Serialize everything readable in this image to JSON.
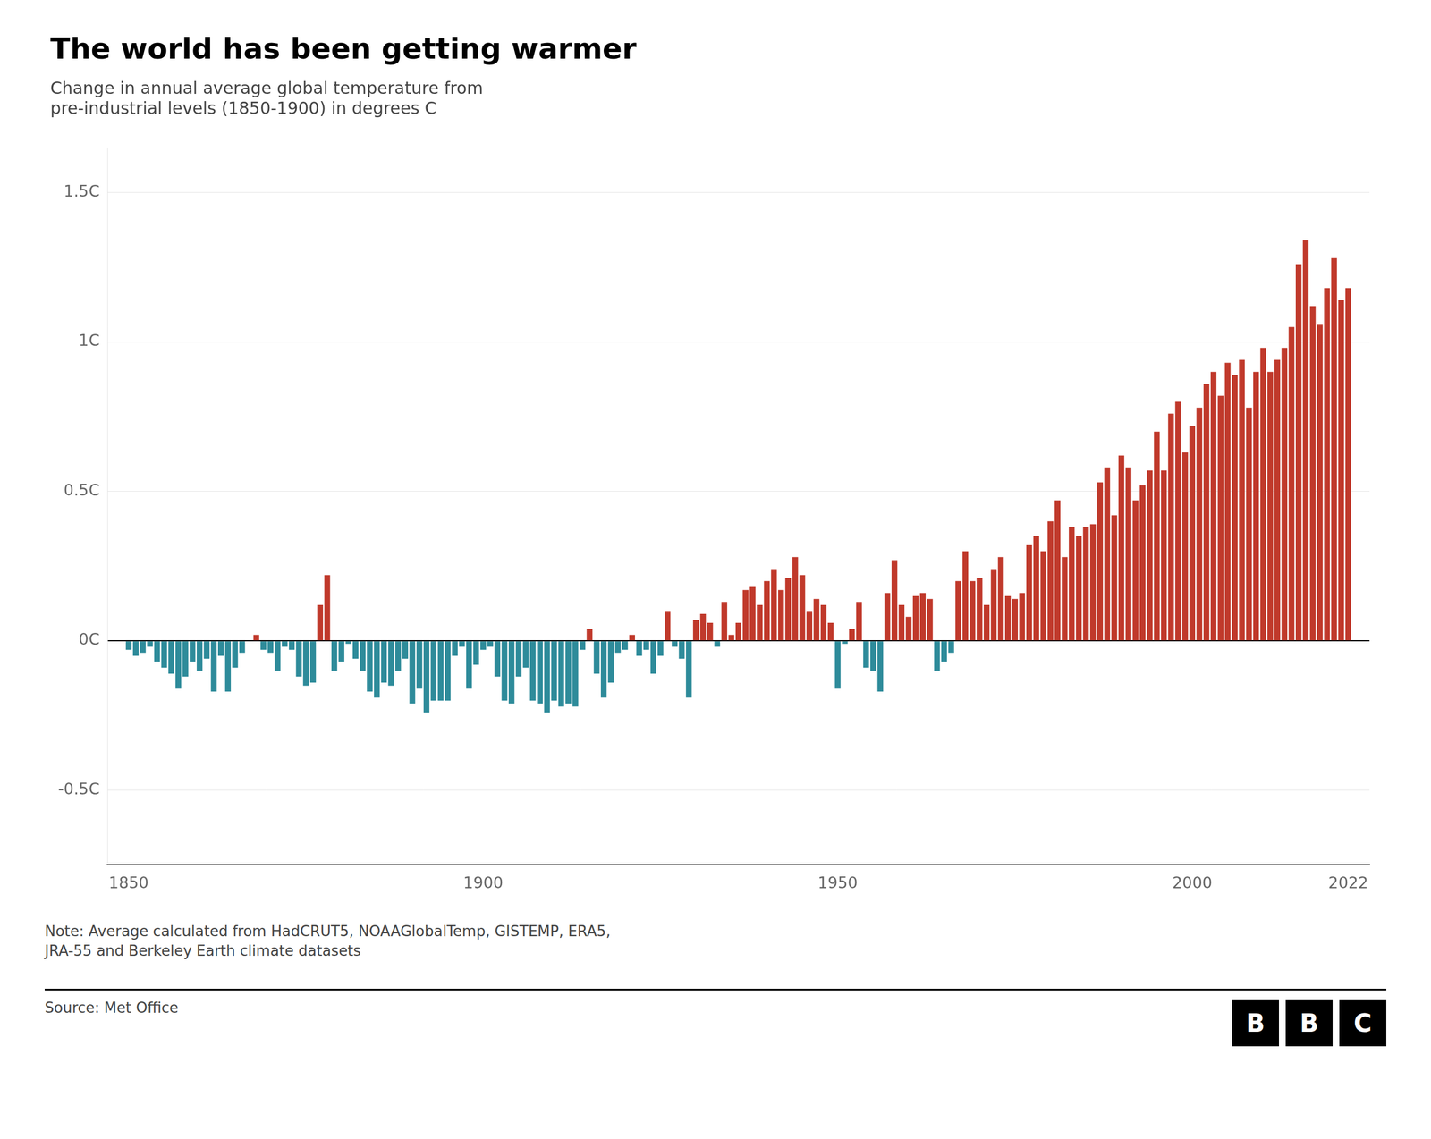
{
  "chart_data": {
    "type": "bar",
    "title": "The world has been getting warmer",
    "subtitle": "Change in annual average global temperature from\npre-industrial levels (1850-1900) in degrees C",
    "note": "Note: Average calculated from HadCRUT5, NOAAGlobalTemp, GISTEMP, ERA5,\nJRA-55 and Berkeley Earth climate datasets",
    "source": "Source: Met Office",
    "logo": [
      "B",
      "B",
      "C"
    ],
    "x": [
      1850,
      1851,
      1852,
      1853,
      1854,
      1855,
      1856,
      1857,
      1858,
      1859,
      1860,
      1861,
      1862,
      1863,
      1864,
      1865,
      1866,
      1867,
      1868,
      1869,
      1870,
      1871,
      1872,
      1873,
      1874,
      1875,
      1876,
      1877,
      1878,
      1879,
      1880,
      1881,
      1882,
      1883,
      1884,
      1885,
      1886,
      1887,
      1888,
      1889,
      1890,
      1891,
      1892,
      1893,
      1894,
      1895,
      1896,
      1897,
      1898,
      1899,
      1900,
      1901,
      1902,
      1903,
      1904,
      1905,
      1906,
      1907,
      1908,
      1909,
      1910,
      1911,
      1912,
      1913,
      1914,
      1915,
      1916,
      1917,
      1918,
      1919,
      1920,
      1921,
      1922,
      1923,
      1924,
      1925,
      1926,
      1927,
      1928,
      1929,
      1930,
      1931,
      1932,
      1933,
      1934,
      1935,
      1936,
      1937,
      1938,
      1939,
      1940,
      1941,
      1942,
      1943,
      1944,
      1945,
      1946,
      1947,
      1948,
      1949,
      1950,
      1951,
      1952,
      1953,
      1954,
      1955,
      1956,
      1957,
      1958,
      1959,
      1960,
      1961,
      1962,
      1963,
      1964,
      1965,
      1966,
      1967,
      1968,
      1969,
      1970,
      1971,
      1972,
      1973,
      1974,
      1975,
      1976,
      1977,
      1978,
      1979,
      1980,
      1981,
      1982,
      1983,
      1984,
      1985,
      1986,
      1987,
      1988,
      1989,
      1990,
      1991,
      1992,
      1993,
      1994,
      1995,
      1996,
      1997,
      1998,
      1999,
      2000,
      2001,
      2002,
      2003,
      2004,
      2005,
      2006,
      2007,
      2008,
      2009,
      2010,
      2011,
      2012,
      2013,
      2014,
      2015,
      2016,
      2017,
      2018,
      2019,
      2020,
      2021,
      2022
    ],
    "values": [
      -0.03,
      -0.05,
      -0.04,
      -0.02,
      -0.07,
      -0.09,
      -0.11,
      -0.16,
      -0.12,
      -0.07,
      -0.1,
      -0.06,
      -0.17,
      -0.05,
      -0.17,
      -0.09,
      -0.04,
      0.0,
      0.02,
      -0.03,
      -0.04,
      -0.1,
      -0.02,
      -0.03,
      -0.12,
      -0.15,
      -0.14,
      0.12,
      0.22,
      -0.1,
      -0.07,
      -0.01,
      -0.06,
      -0.1,
      -0.17,
      -0.19,
      -0.14,
      -0.15,
      -0.1,
      -0.06,
      -0.21,
      -0.16,
      -0.24,
      -0.2,
      -0.2,
      -0.2,
      -0.05,
      -0.02,
      -0.16,
      -0.08,
      -0.03,
      -0.02,
      -0.12,
      -0.2,
      -0.21,
      -0.12,
      -0.09,
      -0.2,
      -0.21,
      -0.24,
      -0.2,
      -0.22,
      -0.21,
      -0.22,
      -0.03,
      0.04,
      -0.11,
      -0.19,
      -0.14,
      -0.04,
      -0.03,
      0.02,
      -0.05,
      -0.03,
      -0.11,
      -0.05,
      0.1,
      -0.02,
      -0.06,
      -0.19,
      0.07,
      0.09,
      0.06,
      -0.02,
      0.13,
      0.02,
      0.06,
      0.17,
      0.18,
      0.12,
      0.2,
      0.24,
      0.17,
      0.21,
      0.28,
      0.22,
      0.1,
      0.14,
      0.12,
      0.06,
      -0.16,
      -0.01,
      0.04,
      0.13,
      -0.09,
      -0.1,
      -0.17,
      0.16,
      0.27,
      0.12,
      0.08,
      0.15,
      0.16,
      0.14,
      -0.1,
      -0.07,
      -0.04,
      0.2,
      0.3,
      0.2,
      0.21,
      0.12,
      0.24,
      0.28,
      0.15,
      0.14,
      0.16,
      0.32,
      0.35,
      0.3,
      0.4,
      0.47,
      0.28,
      0.38,
      0.35,
      0.38,
      0.39,
      0.53,
      0.58,
      0.42,
      0.62,
      0.58,
      0.47,
      0.52,
      0.57,
      0.7,
      0.57,
      0.76,
      0.8,
      0.63,
      0.72,
      0.78,
      0.86,
      0.9,
      0.82,
      0.93,
      0.89,
      0.94,
      0.78,
      0.9,
      0.98,
      0.9,
      0.94,
      0.98,
      1.05,
      1.26,
      1.34,
      1.12,
      1.06,
      1.18,
      1.28,
      1.14,
      1.18
    ],
    "colors": [
      "#2e8b9a",
      "#2e8b9a",
      "#2e8b9a",
      "#2e8b9a",
      "#2e8b9a",
      "#2e8b9a",
      "#2e8b9a",
      "#2e8b9a",
      "#2e8b9a",
      "#2e8b9a",
      "#2e8b9a",
      "#2e8b9a",
      "#2e8b9a",
      "#2e8b9a",
      "#2e8b9a",
      "#2e8b9a",
      "#2e8b9a",
      "#c0392b",
      "#c0392b",
      "#2e8b9a",
      "#2e8b9a",
      "#2e8b9a",
      "#2e8b9a",
      "#2e8b9a",
      "#2e8b9a",
      "#2e8b9a",
      "#2e8b9a",
      "#c0392b",
      "#c0392b",
      "#2e8b9a",
      "#2e8b9a",
      "#2e8b9a",
      "#2e8b9a",
      "#2e8b9a",
      "#2e8b9a",
      "#2e8b9a",
      "#2e8b9a",
      "#2e8b9a",
      "#2e8b9a",
      "#2e8b9a",
      "#2e8b9a",
      "#2e8b9a",
      "#2e8b9a",
      "#2e8b9a",
      "#2e8b9a",
      "#2e8b9a",
      "#2e8b9a",
      "#2e8b9a",
      "#2e8b9a",
      "#2e8b9a",
      "#2e8b9a",
      "#2e8b9a",
      "#2e8b9a",
      "#2e8b9a",
      "#2e8b9a",
      "#2e8b9a",
      "#2e8b9a",
      "#2e8b9a",
      "#2e8b9a",
      "#2e8b9a",
      "#2e8b9a",
      "#2e8b9a",
      "#2e8b9a",
      "#2e8b9a",
      "#2e8b9a",
      "#c0392b",
      "#2e8b9a",
      "#2e8b9a",
      "#2e8b9a",
      "#2e8b9a",
      "#2e8b9a",
      "#c0392b",
      "#2e8b9a",
      "#2e8b9a",
      "#2e8b9a",
      "#2e8b9a",
      "#c0392b",
      "#2e8b9a",
      "#2e8b9a",
      "#2e8b9a",
      "#c0392b",
      "#c0392b",
      "#c0392b",
      "#2e8b9a",
      "#c0392b",
      "#c0392b",
      "#c0392b",
      "#c0392b",
      "#c0392b",
      "#c0392b",
      "#c0392b",
      "#c0392b",
      "#c0392b",
      "#c0392b",
      "#c0392b",
      "#c0392b",
      "#c0392b",
      "#c0392b",
      "#c0392b",
      "#c0392b",
      "#2e8b9a",
      "#2e8b9a",
      "#c0392b",
      "#c0392b",
      "#2e8b9a",
      "#2e8b9a",
      "#2e8b9a",
      "#c0392b",
      "#c0392b",
      "#c0392b",
      "#c0392b",
      "#c0392b",
      "#c0392b",
      "#c0392b",
      "#2e8b9a",
      "#2e8b9a",
      "#2e8b9a",
      "#c0392b",
      "#c0392b",
      "#c0392b",
      "#c0392b",
      "#c0392b",
      "#c0392b",
      "#c0392b",
      "#c0392b",
      "#c0392b",
      "#c0392b",
      "#c0392b",
      "#c0392b",
      "#c0392b",
      "#c0392b",
      "#c0392b",
      "#c0392b",
      "#c0392b",
      "#c0392b",
      "#c0392b",
      "#c0392b",
      "#c0392b",
      "#c0392b",
      "#c0392b",
      "#c0392b",
      "#c0392b",
      "#c0392b",
      "#c0392b",
      "#c0392b",
      "#c0392b",
      "#c0392b",
      "#c0392b",
      "#c0392b",
      "#c0392b",
      "#c0392b",
      "#c0392b",
      "#c0392b",
      "#c0392b",
      "#c0392b",
      "#c0392b",
      "#c0392b",
      "#c0392b",
      "#c0392b",
      "#c0392b",
      "#c0392b",
      "#c0392b",
      "#c0392b",
      "#c0392b",
      "#c0392b",
      "#c0392b",
      "#c0392b",
      "#c0392b",
      "#c0392b",
      "#c0392b",
      "#c0392b",
      "#c0392b",
      "#c0392b"
    ],
    "xlim": [
      1847,
      2025
    ],
    "xticks": [
      1850,
      1900,
      1950,
      2000,
      2022
    ],
    "ylim": [
      -0.75,
      1.65
    ],
    "yticks": [
      {
        "value": -0.5,
        "label": "-0.5C"
      },
      {
        "value": 0.0,
        "label": "0C"
      },
      {
        "value": 0.5,
        "label": "0.5C"
      },
      {
        "value": 1.0,
        "label": "1C"
      },
      {
        "value": 1.5,
        "label": "1.5C"
      }
    ],
    "grid": "y"
  }
}
